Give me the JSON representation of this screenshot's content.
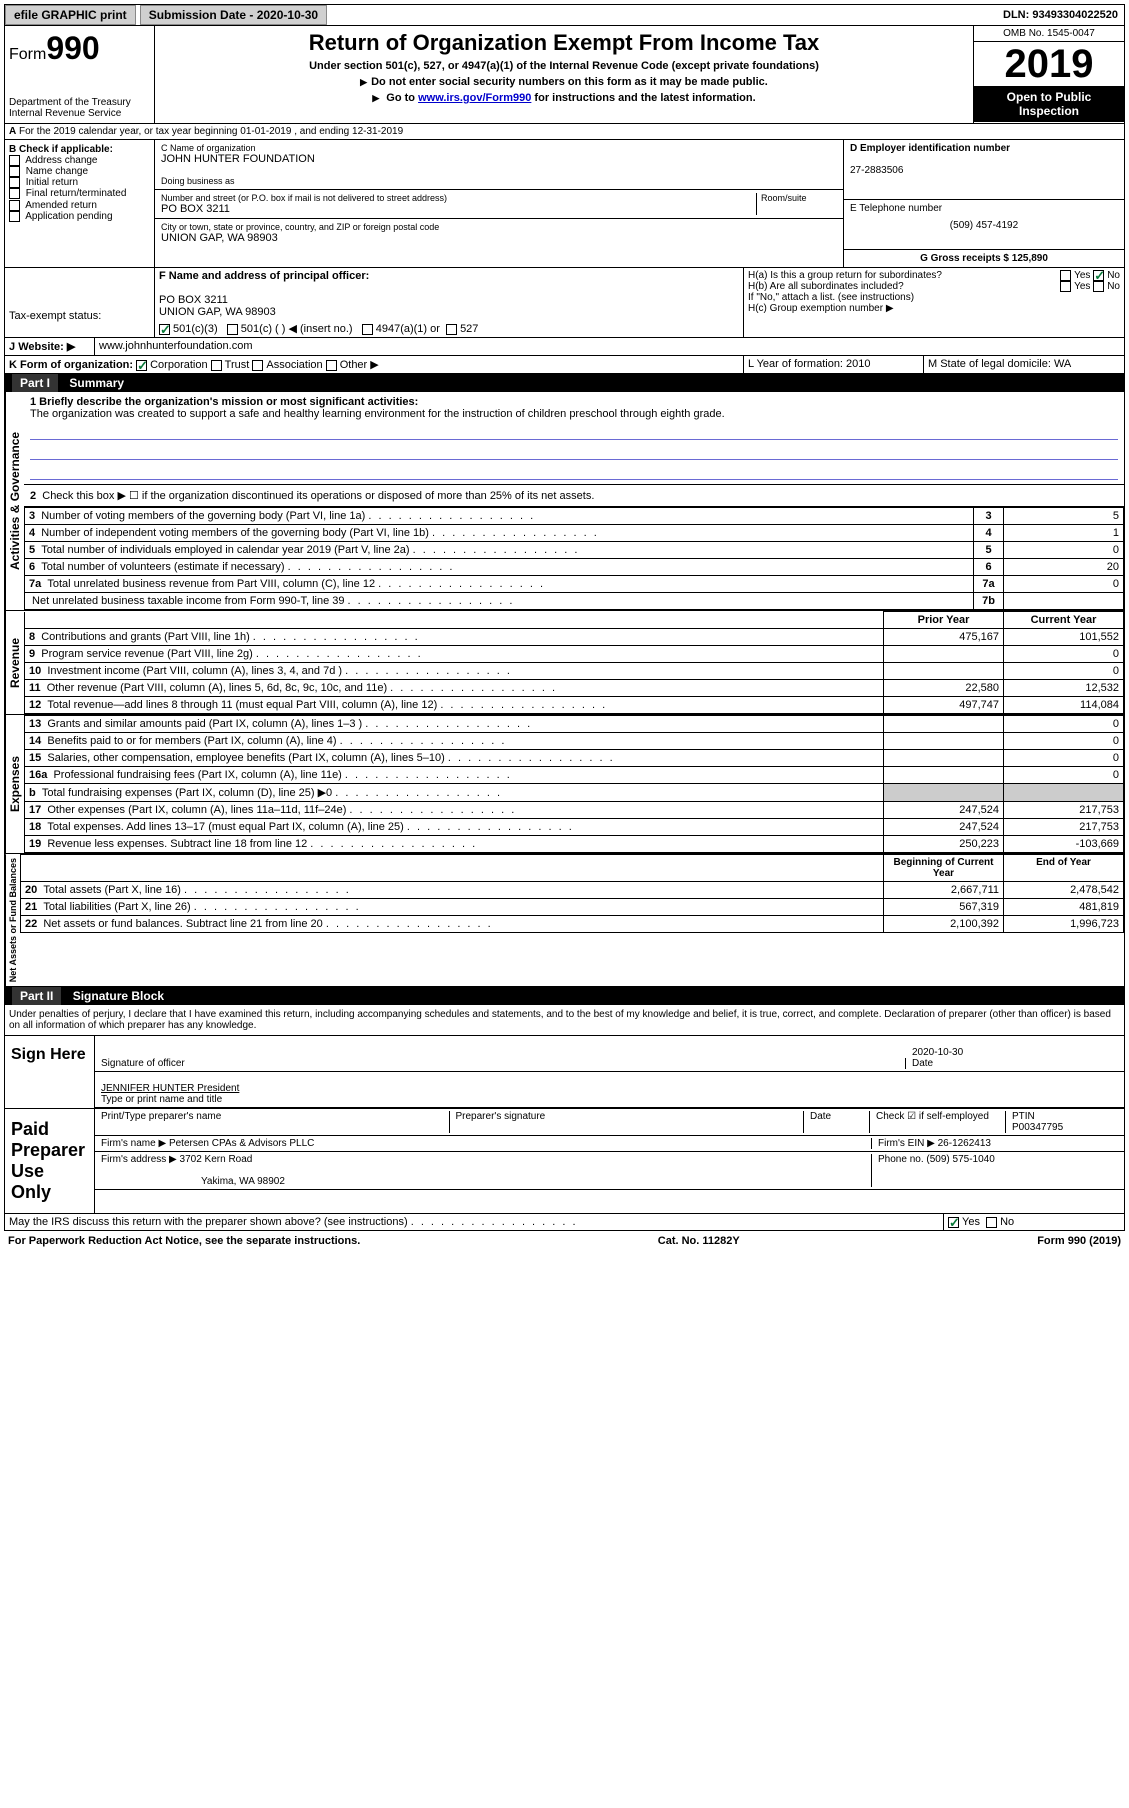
{
  "topbar": {
    "efile": "efile GRAPHIC print",
    "submission_label": "Submission Date - 2020-10-30",
    "dln": "DLN: 93493304022520"
  },
  "header": {
    "form_word": "Form",
    "form_num": "990",
    "dept": "Department of the Treasury",
    "irs": "Internal Revenue Service",
    "title": "Return of Organization Exempt From Income Tax",
    "subtitle": "Under section 501(c), 527, or 4947(a)(1) of the Internal Revenue Code (except private foundations)",
    "note1": "Do not enter social security numbers on this form as it may be made public.",
    "note2_pre": "Go to ",
    "note2_link": "www.irs.gov/Form990",
    "note2_post": " for instructions and the latest information.",
    "omb": "OMB No. 1545-0047",
    "year": "2019",
    "open": "Open to Public Inspection"
  },
  "sec_a": "For the 2019 calendar year, or tax year beginning 01-01-2019   , and ending 12-31-2019",
  "col_b": {
    "label": "B Check if applicable:",
    "items": [
      "Address change",
      "Name change",
      "Initial return",
      "Final return/terminated",
      "Amended return",
      "Application pending"
    ]
  },
  "col_c": {
    "name_label": "C Name of organization",
    "name": "JOHN HUNTER FOUNDATION",
    "dba_label": "Doing business as",
    "dba": "",
    "street_label": "Number and street (or P.O. box if mail is not delivered to street address)",
    "street": "PO BOX 3211",
    "room_label": "Room/suite",
    "city_label": "City or town, state or province, country, and ZIP or foreign postal code",
    "city": "UNION GAP, WA  98903",
    "officer_label": "F  Name and address of principal officer:",
    "officer_addr1": "PO BOX 3211",
    "officer_addr2": "UNION GAP, WA  98903"
  },
  "col_d": {
    "ein_label": "D Employer identification number",
    "ein": "27-2883506",
    "phone_label": "E Telephone number",
    "phone": "(509) 457-4192",
    "gross_label": "G Gross receipts $ 125,890"
  },
  "h": {
    "ha_label": "H(a)  Is this a group return for subordinates?",
    "hb_label": "H(b)  Are all subordinates included?",
    "hb_note": "If \"No,\" attach a list. (see instructions)",
    "hc_label": "H(c)  Group exemption number ▶"
  },
  "tax_exempt": {
    "label": "Tax-exempt status:",
    "opt1": "501(c)(3)",
    "opt2": "501(c) (  ) ◀ (insert no.)",
    "opt3": "4947(a)(1) or",
    "opt4": "527"
  },
  "website": {
    "label": "Website: ▶",
    "val": "www.johnhunterfoundation.com"
  },
  "k": {
    "label": "K Form of organization:",
    "opts": [
      "Corporation",
      "Trust",
      "Association",
      "Other ▶"
    ]
  },
  "lm": {
    "l": "L Year of formation: 2010",
    "m": "M State of legal domicile: WA"
  },
  "part1": {
    "hdr": "Part I",
    "title": "Summary",
    "mission_label": "1  Briefly describe the organization's mission or most significant activities:",
    "mission": "The organization was created to support a safe and healthy learning environment for the instruction of children preschool through eighth grade.",
    "line2": "Check this box ▶ ☐  if the organization discontinued its operations or disposed of more than 25% of its net assets."
  },
  "activities_gov": {
    "label": "Activities & Governance",
    "rows": [
      {
        "n": "3",
        "t": "Number of voting members of the governing body (Part VI, line 1a)",
        "box": "3",
        "v": "5"
      },
      {
        "n": "4",
        "t": "Number of independent voting members of the governing body (Part VI, line 1b)",
        "box": "4",
        "v": "1"
      },
      {
        "n": "5",
        "t": "Total number of individuals employed in calendar year 2019 (Part V, line 2a)",
        "box": "5",
        "v": "0"
      },
      {
        "n": "6",
        "t": "Total number of volunteers (estimate if necessary)",
        "box": "6",
        "v": "20"
      },
      {
        "n": "7a",
        "t": "Total unrelated business revenue from Part VIII, column (C), line 12",
        "box": "7a",
        "v": "0"
      },
      {
        "n": "",
        "t": "Net unrelated business taxable income from Form 990-T, line 39",
        "box": "7b",
        "v": ""
      }
    ]
  },
  "revenue": {
    "label": "Revenue",
    "head_prior": "Prior Year",
    "head_curr": "Current Year",
    "rows": [
      {
        "n": "8",
        "t": "Contributions and grants (Part VIII, line 1h)",
        "p": "475,167",
        "c": "101,552"
      },
      {
        "n": "9",
        "t": "Program service revenue (Part VIII, line 2g)",
        "p": "",
        "c": "0"
      },
      {
        "n": "10",
        "t": "Investment income (Part VIII, column (A), lines 3, 4, and 7d )",
        "p": "",
        "c": "0"
      },
      {
        "n": "11",
        "t": "Other revenue (Part VIII, column (A), lines 5, 6d, 8c, 9c, 10c, and 11e)",
        "p": "22,580",
        "c": "12,532"
      },
      {
        "n": "12",
        "t": "Total revenue—add lines 8 through 11 (must equal Part VIII, column (A), line 12)",
        "p": "497,747",
        "c": "114,084"
      }
    ]
  },
  "expenses": {
    "label": "Expenses",
    "rows": [
      {
        "n": "13",
        "t": "Grants and similar amounts paid (Part IX, column (A), lines 1–3 )",
        "p": "",
        "c": "0"
      },
      {
        "n": "14",
        "t": "Benefits paid to or for members (Part IX, column (A), line 4)",
        "p": "",
        "c": "0"
      },
      {
        "n": "15",
        "t": "Salaries, other compensation, employee benefits (Part IX, column (A), lines 5–10)",
        "p": "",
        "c": "0"
      },
      {
        "n": "16a",
        "t": "Professional fundraising fees (Part IX, column (A), line 11e)",
        "p": "",
        "c": "0"
      },
      {
        "n": "b",
        "t": "Total fundraising expenses (Part IX, column (D), line 25) ▶0",
        "p": "shade",
        "c": "shade"
      },
      {
        "n": "17",
        "t": "Other expenses (Part IX, column (A), lines 11a–11d, 11f–24e)",
        "p": "247,524",
        "c": "217,753"
      },
      {
        "n": "18",
        "t": "Total expenses. Add lines 13–17 (must equal Part IX, column (A), line 25)",
        "p": "247,524",
        "c": "217,753"
      },
      {
        "n": "19",
        "t": "Revenue less expenses. Subtract line 18 from line 12",
        "p": "250,223",
        "c": "-103,669"
      }
    ]
  },
  "netassets": {
    "label": "Net Assets or Fund Balances",
    "head_prior": "Beginning of Current Year",
    "head_curr": "End of Year",
    "rows": [
      {
        "n": "20",
        "t": "Total assets (Part X, line 16)",
        "p": "2,667,711",
        "c": "2,478,542"
      },
      {
        "n": "21",
        "t": "Total liabilities (Part X, line 26)",
        "p": "567,319",
        "c": "481,819"
      },
      {
        "n": "22",
        "t": "Net assets or fund balances. Subtract line 21 from line 20",
        "p": "2,100,392",
        "c": "1,996,723"
      }
    ]
  },
  "part2": {
    "hdr": "Part II",
    "title": "Signature Block",
    "penalties": "Under penalties of perjury, I declare that I have examined this return, including accompanying schedules and statements, and to the best of my knowledge and belief, it is true, correct, and complete. Declaration of preparer (other than officer) is based on all information of which preparer has any knowledge."
  },
  "sign": {
    "label": "Sign Here",
    "sig_label": "Signature of officer",
    "date": "2020-10-30",
    "date_label": "Date",
    "name": "JENNIFER HUNTER President",
    "name_label": "Type or print name and title"
  },
  "preparer": {
    "label": "Paid Preparer Use Only",
    "name_label": "Print/Type preparer's name",
    "sig_label": "Preparer's signature",
    "date_label": "Date",
    "check_label": "Check ☑ if self-employed",
    "ptin_label": "PTIN",
    "ptin": "P00347795",
    "firm_label": "Firm's name  ▶",
    "firm": "Petersen CPAs & Advisors PLLC",
    "ein_label": "Firm's EIN ▶",
    "ein": "26-1262413",
    "addr_label": "Firm's address ▶",
    "addr1": "3702 Kern Road",
    "addr2": "Yakima, WA  98902",
    "phone_label": "Phone no.",
    "phone": "(509) 575-1040",
    "discuss": "May the IRS discuss this return with the preparer shown above? (see instructions)"
  },
  "footer": {
    "left": "For Paperwork Reduction Act Notice, see the separate instructions.",
    "mid": "Cat. No. 11282Y",
    "right": "Form 990 (2019)"
  },
  "yes": "Yes",
  "no": "No"
}
